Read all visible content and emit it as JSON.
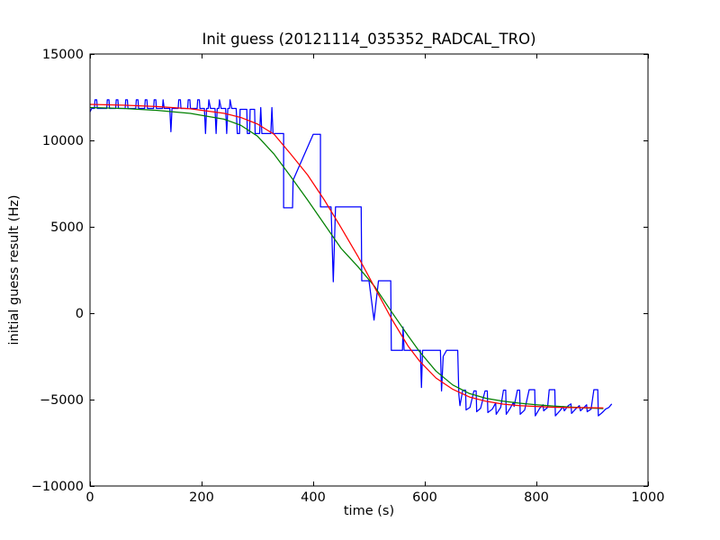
{
  "chart_data": {
    "type": "line",
    "title": "Init guess (20121114_035352_RADCAL_TRO)",
    "xlabel": "time (s)",
    "ylabel": "initial guess result (Hz)",
    "xlim": [
      0,
      1000
    ],
    "ylim": [
      -10000,
      15000
    ],
    "xticks": [
      0,
      200,
      400,
      600,
      800,
      1000
    ],
    "yticks": [
      -10000,
      -5000,
      0,
      5000,
      10000,
      15000
    ],
    "grid": false,
    "legend_position": "none",
    "frame_color": "#000000",
    "background_color": "#ffffff",
    "series": [
      {
        "name": "blue-noisy-data",
        "color": "#0000ff",
        "points": [
          [
            0,
            11650
          ],
          [
            3,
            11850
          ],
          [
            8,
            11850
          ],
          [
            9,
            12350
          ],
          [
            12,
            12350
          ],
          [
            13,
            11850
          ],
          [
            30,
            11850
          ],
          [
            31,
            12350
          ],
          [
            34,
            12350
          ],
          [
            35,
            11850
          ],
          [
            46,
            11850
          ],
          [
            47,
            12350
          ],
          [
            50,
            12350
          ],
          [
            51,
            11850
          ],
          [
            63,
            11850
          ],
          [
            64,
            12350
          ],
          [
            67,
            12350
          ],
          [
            68,
            11850
          ],
          [
            82,
            11850
          ],
          [
            83,
            12350
          ],
          [
            86,
            12350
          ],
          [
            87,
            11850
          ],
          [
            98,
            11850
          ],
          [
            99,
            12350
          ],
          [
            102,
            12350
          ],
          [
            103,
            11850
          ],
          [
            114,
            11850
          ],
          [
            115,
            12350
          ],
          [
            118,
            12350
          ],
          [
            119,
            11850
          ],
          [
            130,
            11850
          ],
          [
            131,
            12350
          ],
          [
            133,
            11850
          ],
          [
            143,
            11850
          ],
          [
            145,
            10500
          ],
          [
            147,
            11850
          ],
          [
            158,
            11850
          ],
          [
            159,
            12350
          ],
          [
            162,
            12350
          ],
          [
            163,
            11850
          ],
          [
            175,
            11850
          ],
          [
            176,
            12350
          ],
          [
            179,
            12350
          ],
          [
            180,
            11850
          ],
          [
            192,
            11850
          ],
          [
            193,
            12350
          ],
          [
            196,
            12350
          ],
          [
            197,
            11850
          ],
          [
            205,
            11850
          ],
          [
            207,
            10400
          ],
          [
            209,
            11850
          ],
          [
            212,
            11850
          ],
          [
            213,
            12350
          ],
          [
            216,
            11850
          ],
          [
            224,
            11850
          ],
          [
            226,
            10400
          ],
          [
            228,
            11850
          ],
          [
            231,
            11850
          ],
          [
            232,
            12350
          ],
          [
            235,
            11850
          ],
          [
            243,
            11850
          ],
          [
            245,
            10400
          ],
          [
            247,
            11850
          ],
          [
            250,
            11850
          ],
          [
            251,
            12350
          ],
          [
            254,
            11850
          ],
          [
            262,
            11850
          ],
          [
            264,
            10400
          ],
          [
            268,
            10400
          ],
          [
            269,
            11800
          ],
          [
            281,
            11800
          ],
          [
            282,
            10400
          ],
          [
            286,
            10400
          ],
          [
            287,
            11800
          ],
          [
            295,
            11800
          ],
          [
            296,
            10400
          ],
          [
            304,
            10400
          ],
          [
            306,
            11900
          ],
          [
            308,
            10400
          ],
          [
            324,
            10400
          ],
          [
            326,
            11900
          ],
          [
            328,
            10400
          ],
          [
            347,
            10400
          ],
          [
            347,
            6100
          ],
          [
            363,
            6100
          ],
          [
            364,
            7700
          ],
          [
            400,
            10350
          ],
          [
            413,
            10350
          ],
          [
            413,
            6150
          ],
          [
            432,
            6150
          ],
          [
            436,
            1820
          ],
          [
            440,
            6150
          ],
          [
            486,
            6150
          ],
          [
            487,
            1875
          ],
          [
            500,
            1875
          ],
          [
            509,
            -400
          ],
          [
            517,
            1875
          ],
          [
            539,
            1875
          ],
          [
            540,
            -2150
          ],
          [
            560,
            -2150
          ],
          [
            561,
            -800
          ],
          [
            563,
            -2150
          ],
          [
            592,
            -2150
          ],
          [
            594,
            -4300
          ],
          [
            596,
            -2150
          ],
          [
            628,
            -2150
          ],
          [
            630,
            -4500
          ],
          [
            633,
            -2500
          ],
          [
            639,
            -2150
          ],
          [
            659,
            -2150
          ],
          [
            661,
            -4700
          ],
          [
            663,
            -5350
          ],
          [
            668,
            -4450
          ],
          [
            673,
            -4450
          ],
          [
            674,
            -5600
          ],
          [
            681,
            -5450
          ],
          [
            688,
            -4500
          ],
          [
            692,
            -4500
          ],
          [
            693,
            -5700
          ],
          [
            700,
            -5500
          ],
          [
            708,
            -4500
          ],
          [
            712,
            -4500
          ],
          [
            713,
            -5750
          ],
          [
            721,
            -5550
          ],
          [
            727,
            -5200
          ],
          [
            728,
            -5850
          ],
          [
            736,
            -5450
          ],
          [
            741,
            -4450
          ],
          [
            745,
            -4450
          ],
          [
            746,
            -5850
          ],
          [
            753,
            -5500
          ],
          [
            759,
            -5150
          ],
          [
            760,
            -5400
          ],
          [
            766,
            -4450
          ],
          [
            770,
            -4450
          ],
          [
            771,
            -5850
          ],
          [
            779,
            -5600
          ],
          [
            787,
            -4430
          ],
          [
            797,
            -4430
          ],
          [
            798,
            -5940
          ],
          [
            806,
            -5500
          ],
          [
            812,
            -5300
          ],
          [
            813,
            -5650
          ],
          [
            820,
            -5450
          ],
          [
            823,
            -4430
          ],
          [
            833,
            -4430
          ],
          [
            834,
            -5940
          ],
          [
            842,
            -5650
          ],
          [
            848,
            -5400
          ],
          [
            850,
            -5650
          ],
          [
            857,
            -5350
          ],
          [
            862,
            -5250
          ],
          [
            863,
            -5800
          ],
          [
            870,
            -5550
          ],
          [
            877,
            -5350
          ],
          [
            879,
            -5650
          ],
          [
            887,
            -5400
          ],
          [
            890,
            -5300
          ],
          [
            891,
            -5700
          ],
          [
            898,
            -5550
          ],
          [
            903,
            -4430
          ],
          [
            910,
            -4430
          ],
          [
            911,
            -5940
          ],
          [
            918,
            -5750
          ],
          [
            924,
            -5550
          ],
          [
            930,
            -5450
          ],
          [
            935,
            -5250
          ]
        ]
      },
      {
        "name": "green-fit-curve",
        "color": "#008000",
        "points": [
          [
            0,
            11900
          ],
          [
            60,
            11850
          ],
          [
            120,
            11740
          ],
          [
            180,
            11560
          ],
          [
            240,
            11230
          ],
          [
            270,
            10880
          ],
          [
            300,
            10250
          ],
          [
            330,
            9200
          ],
          [
            360,
            7900
          ],
          [
            390,
            6550
          ],
          [
            420,
            5150
          ],
          [
            450,
            3750
          ],
          [
            480,
            2700
          ],
          [
            510,
            1550
          ],
          [
            540,
            100
          ],
          [
            570,
            -1300
          ],
          [
            590,
            -2200
          ],
          [
            620,
            -3350
          ],
          [
            650,
            -4150
          ],
          [
            680,
            -4650
          ],
          [
            710,
            -4930
          ],
          [
            740,
            -5090
          ],
          [
            770,
            -5210
          ],
          [
            800,
            -5300
          ],
          [
            830,
            -5370
          ],
          [
            860,
            -5430
          ],
          [
            890,
            -5480
          ],
          [
            920,
            -5520
          ]
        ]
      },
      {
        "name": "red-fit-curve",
        "color": "#ff0000",
        "points": [
          [
            0,
            12080
          ],
          [
            60,
            12040
          ],
          [
            120,
            11960
          ],
          [
            180,
            11830
          ],
          [
            240,
            11570
          ],
          [
            270,
            11330
          ],
          [
            300,
            10950
          ],
          [
            330,
            10350
          ],
          [
            360,
            9200
          ],
          [
            390,
            8000
          ],
          [
            420,
            6550
          ],
          [
            450,
            4950
          ],
          [
            480,
            3300
          ],
          [
            510,
            1500
          ],
          [
            540,
            -300
          ],
          [
            570,
            -1900
          ],
          [
            590,
            -2750
          ],
          [
            620,
            -3750
          ],
          [
            650,
            -4400
          ],
          [
            680,
            -4850
          ],
          [
            710,
            -5100
          ],
          [
            740,
            -5260
          ],
          [
            770,
            -5350
          ],
          [
            800,
            -5400
          ],
          [
            830,
            -5440
          ],
          [
            860,
            -5460
          ],
          [
            890,
            -5470
          ],
          [
            920,
            -5480
          ]
        ]
      }
    ]
  }
}
